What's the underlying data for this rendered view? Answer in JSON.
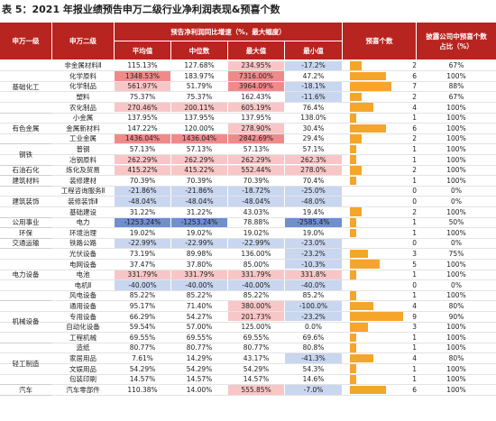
{
  "title": "表 5：2021 年报业绩预告申万二级行业净利润表现&预喜个数",
  "header": {
    "level1": "申万一级",
    "level2": "申万二级",
    "growth": "预告净利润同比增速（%，最大幅度）",
    "avg": "平均值",
    "median": "中位数",
    "max": "最大值",
    "min": "最小值",
    "count": "预喜个数",
    "pct": "披露公司中预喜个数占比（%）"
  },
  "groups": [
    {
      "name": "基础化工",
      "rows": [
        [
          "非金属材料Ⅱ",
          "115.13%",
          "127.68%",
          "234.95%",
          "-17.2%",
          2,
          "67%"
        ],
        [
          "化学原料",
          "1348.53%",
          "183.97%",
          "7316.00%",
          "47.2%",
          6,
          "100%"
        ],
        [
          "化学制品",
          "561.97%",
          "51.79%",
          "3964.09%",
          "-18.1%",
          7,
          "88%"
        ],
        [
          "塑料",
          "75.37%",
          "75.37%",
          "162.43%",
          "-11.6%",
          2,
          "67%"
        ],
        [
          "农化制品",
          "270.46%",
          "200.11%",
          "605.19%",
          "76.4%",
          4,
          "100%"
        ]
      ]
    },
    {
      "name": "有色金属",
      "rows": [
        [
          "小金属",
          "137.95%",
          "137.95%",
          "137.95%",
          "138.0%",
          1,
          "100%"
        ],
        [
          "金属新材料",
          "147.22%",
          "120.00%",
          "278.90%",
          "30.4%",
          6,
          "100%"
        ],
        [
          "工业金属",
          "1436.04%",
          "1436.04%",
          "2842.69%",
          "29.4%",
          2,
          "100%"
        ]
      ]
    },
    {
      "name": "钢铁",
      "rows": [
        [
          "普钢",
          "57.13%",
          "57.13%",
          "57.13%",
          "57.1%",
          1,
          "100%"
        ],
        [
          "冶钢原料",
          "262.29%",
          "262.29%",
          "262.29%",
          "262.3%",
          1,
          "100%"
        ]
      ]
    },
    {
      "name": "石油石化",
      "rows": [
        [
          "炼化及贸易",
          "415.22%",
          "415.22%",
          "552.44%",
          "278.0%",
          2,
          "100%"
        ]
      ]
    },
    {
      "name": "建筑材料",
      "rows": [
        [
          "装修建材",
          "70.39%",
          "70.39%",
          "70.39%",
          "70.4%",
          1,
          "100%"
        ]
      ]
    },
    {
      "name": "建筑装饰",
      "rows": [
        [
          "工程咨询服务Ⅱ",
          "-21.86%",
          "-21.86%",
          "-18.72%",
          "-25.0%",
          0,
          "0%"
        ],
        [
          "装修装饰Ⅱ",
          "-48.04%",
          "-48.04%",
          "-48.04%",
          "-48.0%",
          0,
          "0%"
        ],
        [
          "基础建设",
          "31.22%",
          "31.22%",
          "43.03%",
          "19.4%",
          2,
          "100%"
        ]
      ]
    },
    {
      "name": "公用事业",
      "rows": [
        [
          "电力",
          "-1253.24%",
          "-1253.24%",
          "78.88%",
          "-2585.4%",
          1,
          "50%"
        ]
      ]
    },
    {
      "name": "环保",
      "rows": [
        [
          "环境治理",
          "19.02%",
          "19.02%",
          "19.02%",
          "19.0%",
          1,
          "100%"
        ]
      ]
    },
    {
      "name": "交通运输",
      "rows": [
        [
          "铁路公路",
          "-22.99%",
          "-22.99%",
          "-22.99%",
          "-23.0%",
          0,
          "0%"
        ]
      ]
    },
    {
      "name": "电力设备",
      "rows": [
        [
          "光伏设备",
          "73.19%",
          "89.98%",
          "136.00%",
          "-23.2%",
          3,
          "75%"
        ],
        [
          "电网设备",
          "37.47%",
          "37.80%",
          "85.00%",
          "-10.3%",
          5,
          "100%"
        ],
        [
          "电池",
          "331.79%",
          "331.79%",
          "331.79%",
          "331.8%",
          1,
          "100%"
        ],
        [
          "电机Ⅱ",
          "-40.00%",
          "-40.00%",
          "-40.00%",
          "-40.0%",
          0,
          "0%"
        ],
        [
          "风电设备",
          "85.22%",
          "85.22%",
          "85.22%",
          "85.2%",
          1,
          "100%"
        ]
      ]
    },
    {
      "name": "机械设备",
      "rows": [
        [
          "通用设备",
          "95.17%",
          "71.40%",
          "380.00%",
          "-100.0%",
          4,
          "80%"
        ],
        [
          "专用设备",
          "66.29%",
          "54.27%",
          "201.73%",
          "-23.2%",
          9,
          "90%"
        ],
        [
          "自动化设备",
          "59.54%",
          "57.00%",
          "125.00%",
          "0.0%",
          3,
          "100%"
        ],
        [
          "工程机械",
          "69.55%",
          "69.55%",
          "69.55%",
          "69.6%",
          1,
          "100%"
        ]
      ]
    },
    {
      "name": "轻工制造",
      "rows": [
        [
          "造纸",
          "80.77%",
          "80.77%",
          "80.77%",
          "80.8%",
          1,
          "100%"
        ],
        [
          "家居用品",
          "7.61%",
          "14.29%",
          "43.17%",
          "-41.3%",
          4,
          "80%"
        ],
        [
          "文娱用品",
          "54.29%",
          "54.29%",
          "54.29%",
          "54.3%",
          1,
          "100%"
        ],
        [
          "包装印刷",
          "14.57%",
          "14.57%",
          "14.57%",
          "14.6%",
          1,
          "100%"
        ]
      ]
    },
    {
      "name": "汽车",
      "rows": [
        [
          "汽车零部件",
          "110.38%",
          "14.00%",
          "555.85%",
          "-7.0%",
          6,
          "100%"
        ]
      ]
    }
  ]
}
